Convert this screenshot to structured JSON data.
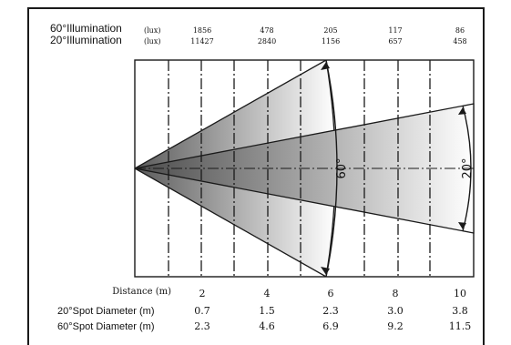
{
  "illumination": {
    "rows": [
      {
        "label": "60°Illumination",
        "unit": "(lux)",
        "values": [
          "1856",
          "478",
          "205",
          "117",
          "86"
        ]
      },
      {
        "label": "20°Illumination",
        "unit": "(lux)",
        "values": [
          "11427",
          "2840",
          "1156",
          "657",
          "458"
        ]
      }
    ]
  },
  "distance": {
    "title": "Distance (m)",
    "values": [
      "2",
      "4",
      "6",
      "8",
      "10"
    ]
  },
  "spot_diameter": {
    "rows": [
      {
        "label": "20°Spot Diameter (m)",
        "values": [
          "0.7",
          "1.5",
          "2.3",
          "3.0",
          "3.8"
        ]
      },
      {
        "label": "60°Spot Diameter (m)",
        "values": [
          "2.3",
          "4.6",
          "6.9",
          "9.2",
          "11.5"
        ]
      }
    ]
  },
  "beams": {
    "wide": {
      "angle_label": "60°",
      "reach_m": 6
    },
    "narrow": {
      "angle_label": "20°",
      "reach_m": 10
    }
  },
  "colors": {
    "line": "#1a1a1a",
    "beam_dark": "#5a5a5a",
    "beam_light": "#ffffff"
  }
}
